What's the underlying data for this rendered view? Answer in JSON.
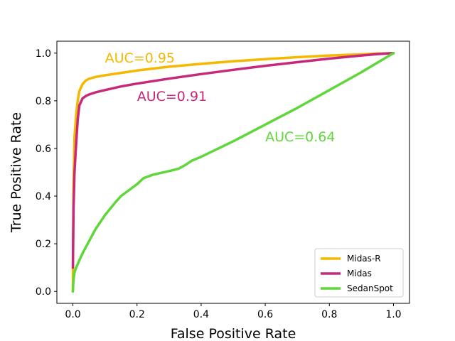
{
  "chart_data": {
    "type": "line",
    "title": "",
    "xlabel": "False Positive Rate",
    "ylabel": "True Positive Rate",
    "xlim": [
      -0.05,
      1.05
    ],
    "ylim": [
      -0.05,
      1.05
    ],
    "xticks": [
      0.0,
      0.2,
      0.4,
      0.6,
      0.8,
      1.0
    ],
    "xtick_labels": [
      "0.0",
      "0.2",
      "0.4",
      "0.6",
      "0.8",
      "1.0"
    ],
    "yticks": [
      0.0,
      0.2,
      0.4,
      0.6,
      0.8,
      1.0
    ],
    "ytick_labels": [
      "0.0",
      "0.2",
      "0.4",
      "0.6",
      "0.8",
      "1.0"
    ],
    "grid": false,
    "legend_position": "bottom-right",
    "series": [
      {
        "name": "Midas-R",
        "color": "#f5b800",
        "auc_label": "AUC=0.95",
        "x": [
          0.0,
          0.002,
          0.005,
          0.01,
          0.015,
          0.02,
          0.03,
          0.04,
          0.05,
          0.07,
          0.1,
          0.15,
          0.2,
          0.3,
          0.4,
          0.5,
          0.6,
          0.7,
          0.8,
          0.9,
          0.95,
          1.0
        ],
        "y": [
          0.0,
          0.45,
          0.65,
          0.74,
          0.8,
          0.84,
          0.87,
          0.885,
          0.892,
          0.9,
          0.907,
          0.917,
          0.927,
          0.943,
          0.955,
          0.966,
          0.975,
          0.983,
          0.99,
          0.995,
          0.998,
          1.0
        ]
      },
      {
        "name": "Midas",
        "color": "#c8287a",
        "auc_label": "AUC=0.91",
        "x": [
          0.0,
          0.002,
          0.005,
          0.01,
          0.015,
          0.02,
          0.03,
          0.04,
          0.05,
          0.07,
          0.1,
          0.15,
          0.2,
          0.3,
          0.4,
          0.5,
          0.6,
          0.7,
          0.8,
          0.9,
          0.95,
          1.0
        ],
        "y": [
          0.1,
          0.35,
          0.5,
          0.62,
          0.72,
          0.78,
          0.81,
          0.82,
          0.826,
          0.835,
          0.845,
          0.86,
          0.872,
          0.893,
          0.912,
          0.93,
          0.947,
          0.962,
          0.977,
          0.99,
          0.996,
          1.0
        ]
      },
      {
        "name": "SedanSpot",
        "color": "#5fd63a",
        "auc_label": "AUC=0.64",
        "x": [
          0.0,
          0.002,
          0.005,
          0.01,
          0.02,
          0.03,
          0.05,
          0.07,
          0.1,
          0.13,
          0.15,
          0.18,
          0.2,
          0.22,
          0.25,
          0.3,
          0.33,
          0.35,
          0.37,
          0.4,
          0.5,
          0.6,
          0.7,
          0.8,
          0.9,
          1.0
        ],
        "y": [
          0.0,
          0.05,
          0.08,
          0.1,
          0.13,
          0.16,
          0.21,
          0.26,
          0.32,
          0.37,
          0.4,
          0.43,
          0.45,
          0.475,
          0.49,
          0.505,
          0.515,
          0.53,
          0.548,
          0.565,
          0.63,
          0.7,
          0.77,
          0.845,
          0.92,
          1.0
        ]
      }
    ],
    "annotations": [
      {
        "text": "AUC=0.95",
        "x": 0.1,
        "y": 0.96,
        "color": "#f5b800"
      },
      {
        "text": "AUC=0.91",
        "x": 0.2,
        "y": 0.8,
        "color": "#c8287a"
      },
      {
        "text": "AUC=0.64",
        "x": 0.6,
        "y": 0.63,
        "color": "#5fd63a"
      }
    ]
  }
}
